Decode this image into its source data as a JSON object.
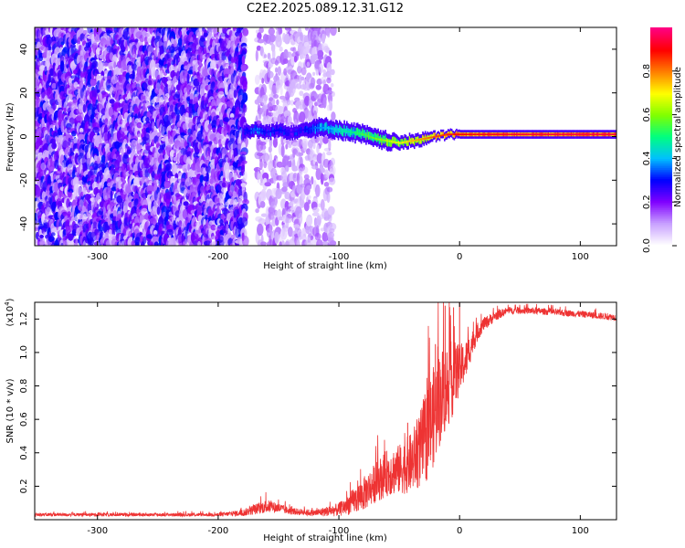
{
  "title": "C2E2.2025.089.12.31.G12",
  "chart_data": [
    {
      "type": "heatmap",
      "xlabel": "Height of straight line (km)",
      "ylabel": "Frequency (Hz)",
      "xlim": [
        -352,
        130
      ],
      "ylim": [
        -50,
        50
      ],
      "xticks": [
        -300,
        -200,
        -100,
        0,
        100
      ],
      "yticks": [
        -40,
        -20,
        0,
        20,
        40
      ],
      "colorbar": {
        "label": "Normalized spectral amplitude",
        "range": [
          0,
          1
        ],
        "ticks": [
          "0.0",
          "0.2",
          "0.4",
          "0.6",
          "0.8"
        ],
        "colors": [
          "#ffffff",
          "#c8a0ff",
          "#8000ff",
          "#0000ff",
          "#00c0ff",
          "#00ff80",
          "#80ff00",
          "#ffff00",
          "#ff8000",
          "#ff0000",
          "#ff0080"
        ]
      },
      "regions": [
        {
          "x": [
            -352,
            -178
          ],
          "freq": [
            -50,
            50
          ],
          "amplitude": 0.12,
          "note": "broadband noise"
        },
        {
          "x": [
            -168,
            -105
          ],
          "freq": [
            -50,
            50
          ],
          "amplitude": 0.06,
          "note": "broadband noise"
        }
      ],
      "signal_track": {
        "x": [
          -180,
          -170,
          -160,
          -150,
          -140,
          -130,
          -120,
          -110,
          -100,
          -90,
          -80,
          -70,
          -60,
          -50,
          -40,
          -30,
          -20,
          -10,
          0,
          20,
          50,
          100,
          130
        ],
        "frequency": [
          2,
          3,
          2,
          3,
          2,
          3,
          4,
          4,
          3,
          2,
          1,
          -1,
          -2,
          -3,
          -2,
          -1,
          0,
          1,
          1,
          1,
          1,
          1,
          1
        ],
        "amplitude": [
          0.25,
          0.35,
          0.28,
          0.3,
          0.25,
          0.28,
          0.35,
          0.4,
          0.45,
          0.5,
          0.55,
          0.6,
          0.65,
          0.7,
          0.75,
          0.8,
          0.85,
          0.88,
          0.9,
          0.92,
          0.94,
          0.95,
          0.95
        ],
        "halfwidth": [
          3,
          3,
          3,
          3,
          3,
          3,
          4,
          4,
          4,
          4,
          4,
          4,
          4,
          3,
          3,
          3,
          2,
          2,
          2,
          2,
          2,
          2,
          2
        ]
      }
    },
    {
      "type": "line",
      "xlabel": "Height of straight line (km)",
      "ylabel": "SNR (10 * v/v)",
      "y_multiplier": "(x10",
      "y_multiplier_exp": "4",
      "y_multiplier_close": ")",
      "xlim": [
        -352,
        130
      ],
      "ylim": [
        0,
        1.3
      ],
      "xticks": [
        -300,
        -200,
        -100,
        0,
        100
      ],
      "yticks": [
        "0.2",
        "0.4",
        "0.6",
        "0.8",
        "1.0",
        "1.2"
      ],
      "color": "#ee3333",
      "series": [
        {
          "x": [
            -352,
            -300,
            -250,
            -200,
            -180,
            -170,
            -160,
            -150,
            -140,
            -120,
            -100,
            -90,
            -80,
            -70,
            -60,
            -50,
            -40,
            -30,
            -25,
            -20,
            -15,
            -10,
            -5,
            0,
            5,
            10,
            15,
            20,
            30,
            40,
            60,
            80,
            100,
            130
          ],
          "y": [
            0.03,
            0.03,
            0.03,
            0.03,
            0.04,
            0.06,
            0.08,
            0.07,
            0.05,
            0.04,
            0.06,
            0.1,
            0.15,
            0.22,
            0.28,
            0.3,
            0.34,
            0.45,
            0.55,
            0.65,
            0.75,
            0.8,
            0.85,
            0.9,
            0.95,
            1.05,
            1.12,
            1.17,
            1.22,
            1.25,
            1.25,
            1.24,
            1.23,
            1.21
          ],
          "spread": [
            0.01,
            0.01,
            0.01,
            0.01,
            0.02,
            0.03,
            0.04,
            0.03,
            0.02,
            0.02,
            0.04,
            0.07,
            0.1,
            0.12,
            0.14,
            0.15,
            0.18,
            0.25,
            0.3,
            0.3,
            0.28,
            0.26,
            0.22,
            0.15,
            0.12,
            0.08,
            0.05,
            0.04,
            0.03,
            0.02,
            0.02,
            0.02,
            0.02,
            0.02
          ],
          "peaks": [
            [
              -62,
              0.41
            ],
            [
              -43,
              0.58
            ],
            [
              -30,
              0.72
            ],
            [
              -20,
              1.05
            ],
            [
              -12,
              1.28
            ],
            [
              -5,
              1.27
            ],
            [
              0,
              1.3
            ]
          ]
        }
      ]
    }
  ]
}
